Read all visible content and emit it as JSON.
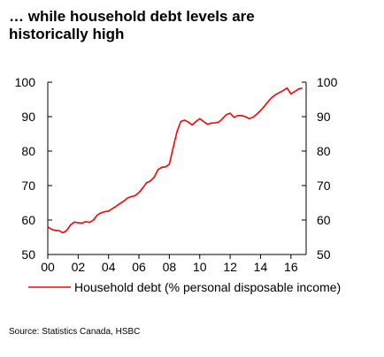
{
  "chart_data": {
    "type": "line",
    "title_line1": "… while household debt levels are",
    "title_line2": "historically high",
    "source": "Source: Statistics Canada, HSBC",
    "xlim": [
      2000,
      2017
    ],
    "ylim": [
      50,
      100
    ],
    "x_ticks": [
      2000,
      2002,
      2004,
      2006,
      2008,
      2010,
      2012,
      2014,
      2016
    ],
    "x_tick_labels": [
      "00",
      "02",
      "04",
      "06",
      "08",
      "10",
      "12",
      "14",
      "16"
    ],
    "y_ticks": [
      50,
      60,
      70,
      80,
      90,
      100
    ],
    "y_tick_labels": [
      "50",
      "60",
      "70",
      "80",
      "90",
      "100"
    ],
    "legend_position": "bottom",
    "series_color": "#ff0000",
    "series": [
      {
        "name": "Household debt (% personal disposable income)",
        "x": [
          2000.0,
          2000.25,
          2000.5,
          2000.75,
          2001.0,
          2001.25,
          2001.5,
          2001.75,
          2002.0,
          2002.25,
          2002.5,
          2002.75,
          2003.0,
          2003.25,
          2003.5,
          2003.75,
          2004.0,
          2004.25,
          2004.5,
          2004.75,
          2005.0,
          2005.25,
          2005.5,
          2005.75,
          2006.0,
          2006.25,
          2006.5,
          2006.75,
          2007.0,
          2007.25,
          2007.5,
          2007.75,
          2008.0,
          2008.25,
          2008.5,
          2008.75,
          2009.0,
          2009.25,
          2009.5,
          2009.75,
          2010.0,
          2010.25,
          2010.5,
          2010.75,
          2011.0,
          2011.25,
          2011.5,
          2011.75,
          2012.0,
          2012.25,
          2012.5,
          2012.75,
          2013.0,
          2013.25,
          2013.5,
          2013.75,
          2014.0,
          2014.25,
          2014.5,
          2014.75,
          2015.0,
          2015.25,
          2015.5,
          2015.75,
          2016.0,
          2016.25,
          2016.5,
          2016.75
        ],
        "values": [
          58.0,
          57.3,
          57.0,
          56.9,
          56.3,
          57.0,
          58.6,
          59.4,
          59.2,
          59.1,
          59.5,
          59.3,
          60.0,
          61.4,
          62.1,
          62.4,
          62.6,
          63.3,
          64.0,
          64.8,
          65.5,
          66.4,
          66.8,
          67.1,
          68.0,
          69.3,
          70.8,
          71.3,
          72.4,
          74.6,
          75.3,
          75.4,
          76.2,
          81.0,
          85.6,
          88.6,
          89.0,
          88.4,
          87.6,
          88.6,
          89.4,
          88.6,
          87.8,
          88.1,
          88.2,
          88.4,
          89.4,
          90.6,
          91.0,
          89.8,
          90.3,
          90.3,
          90.0,
          89.4,
          89.8,
          90.7,
          91.8,
          93.0,
          94.4,
          95.6,
          96.4,
          97.0,
          97.6,
          98.3,
          96.6,
          97.3,
          98.0,
          98.3
        ]
      }
    ]
  }
}
